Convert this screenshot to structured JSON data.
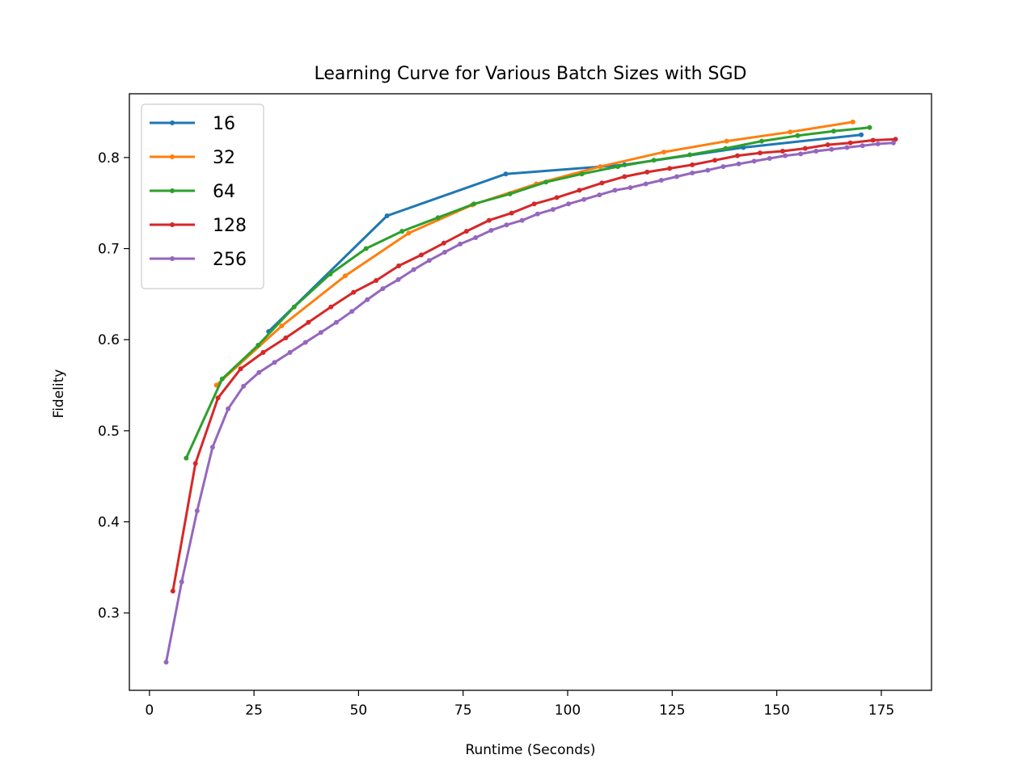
{
  "chart_data": {
    "type": "line",
    "title": "Learning Curve for Various Batch Sizes with SGD",
    "xlabel": "Runtime (Seconds)",
    "ylabel": "Fidelity",
    "xlim": [
      -4.8,
      187
    ],
    "ylim": [
      0.215,
      0.87
    ],
    "xticks": [
      0,
      25,
      50,
      75,
      100,
      125,
      150,
      175
    ],
    "xtick_labels": [
      "0",
      "25",
      "50",
      "75",
      "100",
      "125",
      "150",
      "175"
    ],
    "yticks": [
      0.3,
      0.4,
      0.5,
      0.6,
      0.7,
      0.8
    ],
    "ytick_labels": [
      "0.3",
      "0.4",
      "0.5",
      "0.6",
      "0.7",
      "0.8"
    ],
    "grid": false,
    "legend_position": "top-left",
    "series": [
      {
        "name": "16",
        "color": "#1f77b4",
        "x": [
          28.5,
          56.8,
          85.2,
          113.6,
          142.0,
          170.2
        ],
        "y": [
          0.609,
          0.736,
          0.782,
          0.792,
          0.811,
          0.825
        ]
      },
      {
        "name": "32",
        "color": "#ff7f0e",
        "x": [
          16.0,
          31.6,
          46.8,
          62.0,
          77.2,
          92.5,
          107.8,
          123.0,
          138.0,
          153.2,
          168.2
        ],
        "y": [
          0.55,
          0.615,
          0.67,
          0.717,
          0.748,
          0.771,
          0.79,
          0.806,
          0.818,
          0.828,
          0.839
        ]
      },
      {
        "name": "64",
        "color": "#2ca02c",
        "x": [
          8.8,
          17.4,
          26.0,
          34.6,
          43.2,
          51.8,
          60.4,
          69.0,
          77.6,
          86.2,
          94.8,
          103.4,
          112.0,
          120.6,
          129.2,
          137.8,
          146.4,
          155.0,
          163.6,
          172.2
        ],
        "y": [
          0.47,
          0.557,
          0.594,
          0.636,
          0.672,
          0.7,
          0.719,
          0.734,
          0.749,
          0.76,
          0.773,
          0.782,
          0.79,
          0.797,
          0.803,
          0.81,
          0.818,
          0.824,
          0.829,
          0.833
        ]
      },
      {
        "name": "128",
        "color": "#d62728",
        "x": [
          5.6,
          11.0,
          16.4,
          21.8,
          27.2,
          32.6,
          38.0,
          43.4,
          48.8,
          54.2,
          59.6,
          65.0,
          70.4,
          75.8,
          81.2,
          86.6,
          92.0,
          97.4,
          102.8,
          108.2,
          113.6,
          119.0,
          124.4,
          129.8,
          135.2,
          140.6,
          146.0,
          151.4,
          156.8,
          162.2,
          167.6,
          173.0,
          178.4
        ],
        "y": [
          0.324,
          0.464,
          0.536,
          0.568,
          0.586,
          0.602,
          0.619,
          0.636,
          0.652,
          0.665,
          0.681,
          0.693,
          0.706,
          0.719,
          0.731,
          0.739,
          0.749,
          0.756,
          0.764,
          0.772,
          0.779,
          0.784,
          0.788,
          0.792,
          0.797,
          0.802,
          0.805,
          0.807,
          0.81,
          0.814,
          0.816,
          0.819,
          0.82
        ]
      },
      {
        "name": "256",
        "color": "#9467bd",
        "x": [
          4.0,
          7.7,
          11.4,
          15.1,
          18.8,
          22.5,
          26.2,
          29.9,
          33.6,
          37.3,
          41.0,
          44.7,
          48.4,
          52.1,
          55.8,
          59.5,
          63.2,
          66.9,
          70.6,
          74.3,
          78.0,
          81.7,
          85.4,
          89.1,
          92.8,
          96.5,
          100.2,
          103.9,
          107.6,
          111.3,
          115.0,
          118.7,
          122.4,
          126.1,
          129.8,
          133.5,
          137.2,
          140.9,
          144.6,
          148.3,
          152.0,
          155.7,
          159.4,
          163.1,
          166.8,
          170.5,
          174.2,
          177.9
        ],
        "y": [
          0.246,
          0.334,
          0.412,
          0.482,
          0.524,
          0.549,
          0.564,
          0.575,
          0.586,
          0.597,
          0.608,
          0.619,
          0.631,
          0.644,
          0.656,
          0.666,
          0.677,
          0.687,
          0.696,
          0.705,
          0.712,
          0.72,
          0.726,
          0.731,
          0.738,
          0.743,
          0.749,
          0.754,
          0.759,
          0.764,
          0.767,
          0.771,
          0.775,
          0.779,
          0.783,
          0.786,
          0.79,
          0.793,
          0.796,
          0.799,
          0.802,
          0.804,
          0.807,
          0.809,
          0.811,
          0.813,
          0.815,
          0.816
        ]
      }
    ]
  }
}
